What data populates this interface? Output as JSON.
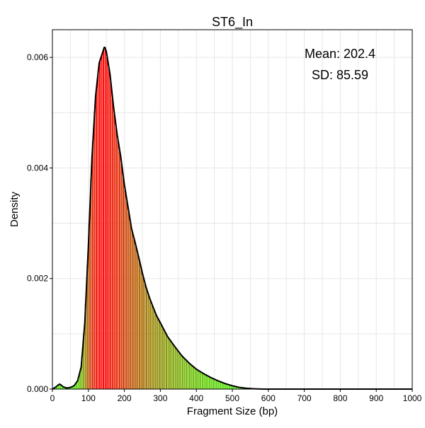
{
  "chart_data": {
    "type": "histogram",
    "title": "ST6_In",
    "xlabel": "Fragment Size (bp)",
    "ylabel": "Density",
    "xlim": [
      0,
      1000
    ],
    "ylim": [
      0,
      0.0065
    ],
    "xticks": [
      "0",
      "100",
      "200",
      "300",
      "400",
      "500",
      "600",
      "700",
      "800",
      "900",
      "1000"
    ],
    "yticks": [
      "0.000",
      "0.002",
      "0.004",
      "0.006"
    ],
    "grid": true,
    "annotations": {
      "mean": "Mean: 202.4",
      "sd": "SD: 85.59"
    },
    "bin_width": 5,
    "density_curve": {
      "x": [
        0,
        10,
        15,
        20,
        25,
        30,
        40,
        50,
        60,
        70,
        80,
        90,
        100,
        110,
        120,
        130,
        140,
        145,
        150,
        160,
        170,
        180,
        190,
        200,
        210,
        220,
        230,
        240,
        250,
        260,
        270,
        280,
        290,
        300,
        320,
        340,
        360,
        380,
        400,
        420,
        440,
        460,
        480,
        500,
        520,
        540,
        560,
        570,
        580,
        600,
        650,
        700,
        800,
        1000
      ],
      "y": [
        0.0,
        4e-05,
        7e-05,
        9e-05,
        7e-05,
        4e-05,
        2e-05,
        3e-05,
        6e-05,
        0.00015,
        0.0004,
        0.0012,
        0.0026,
        0.0042,
        0.0053,
        0.0059,
        0.0061,
        0.0062,
        0.0061,
        0.0057,
        0.0051,
        0.0046,
        0.0042,
        0.0037,
        0.0033,
        0.0029,
        0.00265,
        0.00238,
        0.0021,
        0.00185,
        0.00165,
        0.00148,
        0.00132,
        0.0012,
        0.00095,
        0.00077,
        0.0006,
        0.00047,
        0.00036,
        0.00028,
        0.00021,
        0.00015,
        0.0001,
        6e-05,
        3e-05,
        1.5e-05,
        6e-06,
        3e-06,
        1e-06,
        0.0,
        0.0,
        0.0,
        0.0,
        0.0
      ]
    },
    "colors": {
      "background": "#ffffff",
      "frame": "#000000",
      "grid": "#e6e6e6",
      "curve": "#000000",
      "peak_fill": "#ff0000",
      "tail_fill": "#33ff00"
    }
  }
}
